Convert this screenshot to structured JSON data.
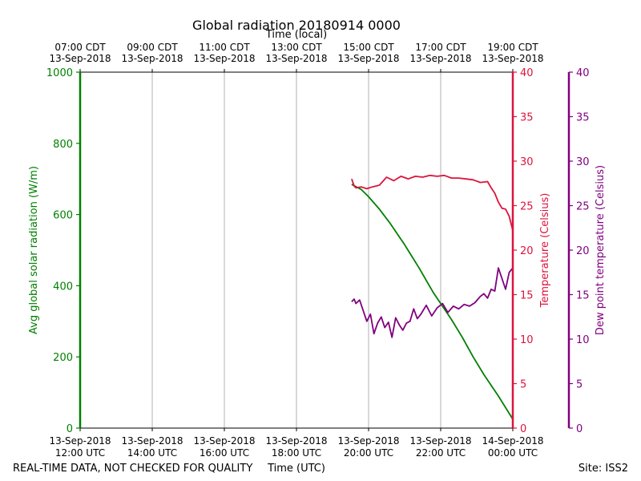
{
  "colors": {
    "radiation": "#008000",
    "temperature": "#dc143c",
    "dewpoint": "#800080",
    "grid": "#b0b0b0",
    "frame": "#000000"
  },
  "footer": {
    "left_note": "REAL-TIME DATA, NOT CHECKED FOR QUALITY",
    "site": "Site: ISS2"
  },
  "chart_data": {
    "type": "line",
    "title": "Global radiation 20180914 0000",
    "xlabel": "Time (UTC)",
    "x2label": "Time (local)",
    "x_unit": "hours UTC since 2018-09-13 00:00",
    "xlim": [
      12,
      24
    ],
    "x_ticks_utc": [
      {
        "x": 12,
        "date": "13-Sep-2018",
        "time": "12:00 UTC"
      },
      {
        "x": 14,
        "date": "13-Sep-2018",
        "time": "14:00 UTC"
      },
      {
        "x": 16,
        "date": "13-Sep-2018",
        "time": "16:00 UTC"
      },
      {
        "x": 18,
        "date": "13-Sep-2018",
        "time": "18:00 UTC"
      },
      {
        "x": 20,
        "date": "13-Sep-2018",
        "time": "20:00 UTC"
      },
      {
        "x": 22,
        "date": "13-Sep-2018",
        "time": "22:00 UTC"
      },
      {
        "x": 24,
        "date": "14-Sep-2018",
        "time": "00:00 UTC"
      }
    ],
    "x_ticks_local": [
      {
        "x": 12,
        "time": "07:00 CDT",
        "date": "13-Sep-2018"
      },
      {
        "x": 14,
        "time": "09:00 CDT",
        "date": "13-Sep-2018"
      },
      {
        "x": 16,
        "time": "11:00 CDT",
        "date": "13-Sep-2018"
      },
      {
        "x": 18,
        "time": "13:00 CDT",
        "date": "13-Sep-2018"
      },
      {
        "x": 20,
        "time": "15:00 CDT",
        "date": "13-Sep-2018"
      },
      {
        "x": 22,
        "time": "17:00 CDT",
        "date": "13-Sep-2018"
      },
      {
        "x": 24,
        "time": "19:00 CDT",
        "date": "13-Sep-2018"
      }
    ],
    "grid_x": true,
    "axes": {
      "radiation": {
        "label": "Avg global solar radiation (W/m)",
        "ylim": [
          0,
          1000
        ],
        "ticks": [
          "0",
          "200",
          "400",
          "600",
          "800",
          "1000"
        ]
      },
      "temperature": {
        "label": "Temperature (Celsius)",
        "ylim": [
          0,
          40
        ],
        "ticks": [
          "0",
          "5",
          "10",
          "15",
          "20",
          "25",
          "30",
          "35",
          "40"
        ]
      },
      "dewpoint": {
        "label": "Dew point temperature (Celsius)",
        "ylim": [
          0,
          40
        ],
        "ticks": [
          "0",
          "5",
          "10",
          "15",
          "20",
          "25",
          "30",
          "35",
          "40"
        ]
      }
    },
    "series": [
      {
        "name": "Avg global solar radiation",
        "axis": "radiation",
        "x": [
          19.53,
          19.8,
          20.0,
          20.3,
          20.6,
          21.0,
          21.4,
          21.8,
          22.0,
          22.3,
          22.6,
          22.9,
          23.2,
          23.6,
          24.0
        ],
        "values": [
          685,
          670,
          650,
          615,
          575,
          515,
          450,
          380,
          350,
          305,
          255,
          200,
          150,
          90,
          25
        ]
      },
      {
        "name": "Temperature",
        "axis": "temperature",
        "x": [
          19.53,
          19.6,
          19.65,
          19.8,
          19.95,
          20.1,
          20.3,
          20.5,
          20.7,
          20.9,
          21.1,
          21.3,
          21.5,
          21.7,
          21.9,
          22.1,
          22.3,
          22.5,
          22.7,
          22.9,
          23.1,
          23.3,
          23.4,
          23.5,
          23.6,
          23.7,
          23.8,
          23.9,
          24.0
        ],
        "values": [
          28.0,
          27.2,
          27.0,
          27.1,
          26.9,
          27.1,
          27.3,
          28.2,
          27.8,
          28.3,
          28.0,
          28.3,
          28.2,
          28.4,
          28.3,
          28.4,
          28.1,
          28.1,
          28.0,
          27.9,
          27.6,
          27.7,
          27.0,
          26.4,
          25.4,
          24.7,
          24.6,
          23.8,
          22.2
        ]
      },
      {
        "name": "Dew point temperature",
        "axis": "dewpoint",
        "x": [
          19.53,
          19.6,
          19.65,
          19.75,
          19.85,
          19.95,
          20.05,
          20.15,
          20.25,
          20.35,
          20.45,
          20.55,
          20.65,
          20.75,
          20.85,
          20.95,
          21.05,
          21.15,
          21.25,
          21.35,
          21.45,
          21.6,
          21.75,
          21.9,
          22.05,
          22.2,
          22.35,
          22.5,
          22.65,
          22.8,
          22.95,
          23.1,
          23.2,
          23.3,
          23.4,
          23.5,
          23.6,
          23.7,
          23.8,
          23.9,
          24.0
        ],
        "values": [
          14.2,
          14.5,
          14.0,
          14.4,
          13.2,
          12.0,
          12.8,
          10.6,
          11.8,
          12.5,
          11.3,
          11.9,
          10.2,
          12.4,
          11.6,
          11.0,
          11.8,
          12.0,
          13.4,
          12.3,
          12.8,
          13.8,
          12.6,
          13.5,
          14.0,
          13.0,
          13.7,
          13.4,
          13.9,
          13.7,
          14.1,
          14.8,
          15.1,
          14.6,
          15.6,
          15.4,
          18.0,
          16.8,
          15.6,
          17.5,
          18.0
        ]
      }
    ]
  }
}
